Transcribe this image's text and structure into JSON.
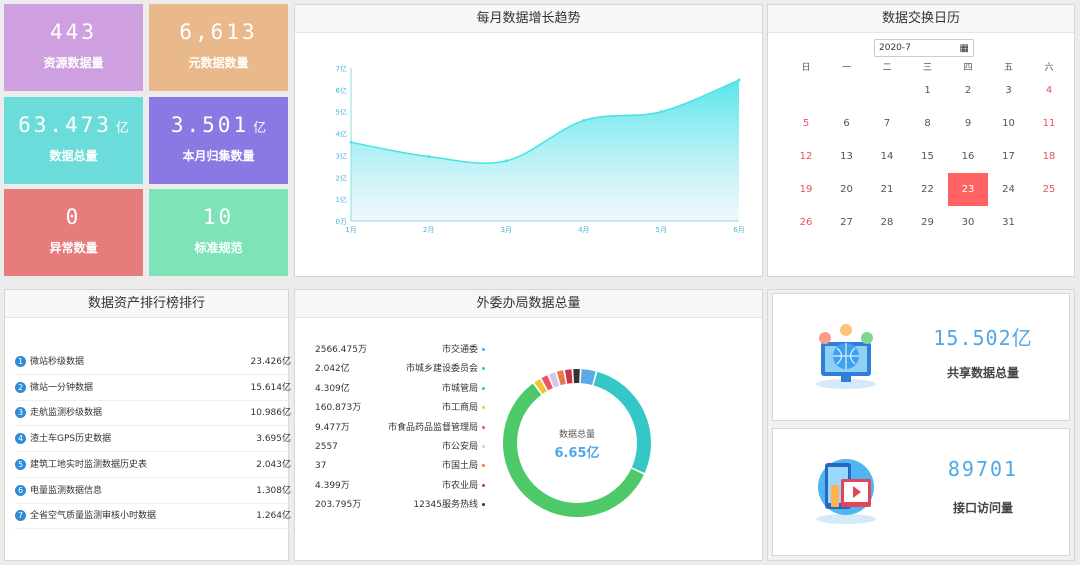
{
  "stats": [
    {
      "value": "443",
      "unit": "",
      "label": "资源数据量",
      "color": "#cea0e0"
    },
    {
      "value": "6,613",
      "unit": "",
      "label": "元数据数量",
      "color": "#e9b98b"
    },
    {
      "value": "63.473",
      "unit": "亿",
      "label": "数据总量",
      "color": "#6cdcda"
    },
    {
      "value": "3.501",
      "unit": "亿",
      "label": "本月归集数量",
      "color": "#8c78e2"
    },
    {
      "value": "0",
      "unit": "",
      "label": "异常数量",
      "color": "#e77c7c"
    },
    {
      "value": "10",
      "unit": "",
      "label": "标准规范",
      "color": "#7ee4b8"
    }
  ],
  "trend": {
    "title": "每月数据增长趋势"
  },
  "chart_data": {
    "type": "area",
    "categories": [
      "1月",
      "2月",
      "3月",
      "4月",
      "5月",
      "6月"
    ],
    "y_ticks": [
      "0万",
      "1亿",
      "2亿",
      "3亿",
      "4亿",
      "5亿",
      "6亿",
      "7亿"
    ],
    "values": [
      3.6,
      2.95,
      2.75,
      4.6,
      5.0,
      6.45
    ],
    "ylim": [
      0,
      7
    ],
    "grid": false,
    "line_color": "#48e1e6"
  },
  "calendar": {
    "title": "数据交换日历",
    "month_input": "2020-7",
    "weekdays": [
      "日",
      "一",
      "二",
      "三",
      "四",
      "五",
      "六"
    ],
    "weeks": [
      [
        "",
        "",
        "",
        "1",
        "2",
        "3",
        "4"
      ],
      [
        "5",
        "6",
        "7",
        "8",
        "9",
        "10",
        "11"
      ],
      [
        "12",
        "13",
        "14",
        "15",
        "16",
        "17",
        "18"
      ],
      [
        "19",
        "20",
        "21",
        "22",
        "23",
        "24",
        "25"
      ],
      [
        "26",
        "27",
        "28",
        "29",
        "30",
        "31",
        ""
      ]
    ],
    "selected_day": "23",
    "weekend_color": "#e8535b",
    "selected_color": "#ff6363"
  },
  "ranking": {
    "title": "数据资产排行榜排行",
    "items": [
      {
        "rank": "1",
        "name": "微站秒级数据",
        "value": "23.426亿"
      },
      {
        "rank": "2",
        "name": "微站一分钟数据",
        "value": "15.614亿"
      },
      {
        "rank": "3",
        "name": "走航监测秒级数据",
        "value": "10.986亿"
      },
      {
        "rank": "4",
        "name": "渣土车GPS历史数据",
        "value": "3.695亿"
      },
      {
        "rank": "5",
        "name": "建筑工地实时监测数据历史表",
        "value": "2.043亿"
      },
      {
        "rank": "6",
        "name": "电量监测数据信息",
        "value": "1.308亿"
      },
      {
        "rank": "7",
        "name": "全省空气质量监测审核小时数据",
        "value": "1.264亿"
      }
    ]
  },
  "bureaus": {
    "title": "外委办局数据总量",
    "center_label": "数据总量",
    "center_value": "6.65亿",
    "items": [
      {
        "value": "2566.475万",
        "name": "市交通委",
        "color": "#5aa9e8"
      },
      {
        "value": "2.042亿",
        "name": "市城乡建设委员会",
        "color": "#35c6c8"
      },
      {
        "value": "4.309亿",
        "name": "市城管局",
        "color": "#4ec96a"
      },
      {
        "value": "160.873万",
        "name": "市工商局",
        "color": "#f4c430"
      },
      {
        "value": "9.477万",
        "name": "市食品药品监督管理局",
        "color": "#e8566a"
      },
      {
        "value": "2557",
        "name": "市公安局",
        "color": "#d6c4ea"
      },
      {
        "value": "37",
        "name": "市国土局",
        "color": "#e8794a"
      },
      {
        "value": "4.399万",
        "name": "市农业局",
        "color": "#c8344a"
      },
      {
        "value": "203.795万",
        "name": "12345服务热线",
        "color": "#333333"
      }
    ]
  },
  "share": {
    "total_value": "15.502亿",
    "total_label": "共享数据总量",
    "api_value": "89701",
    "api_label": "接口访问量",
    "value_color": "#4fa8e8"
  }
}
